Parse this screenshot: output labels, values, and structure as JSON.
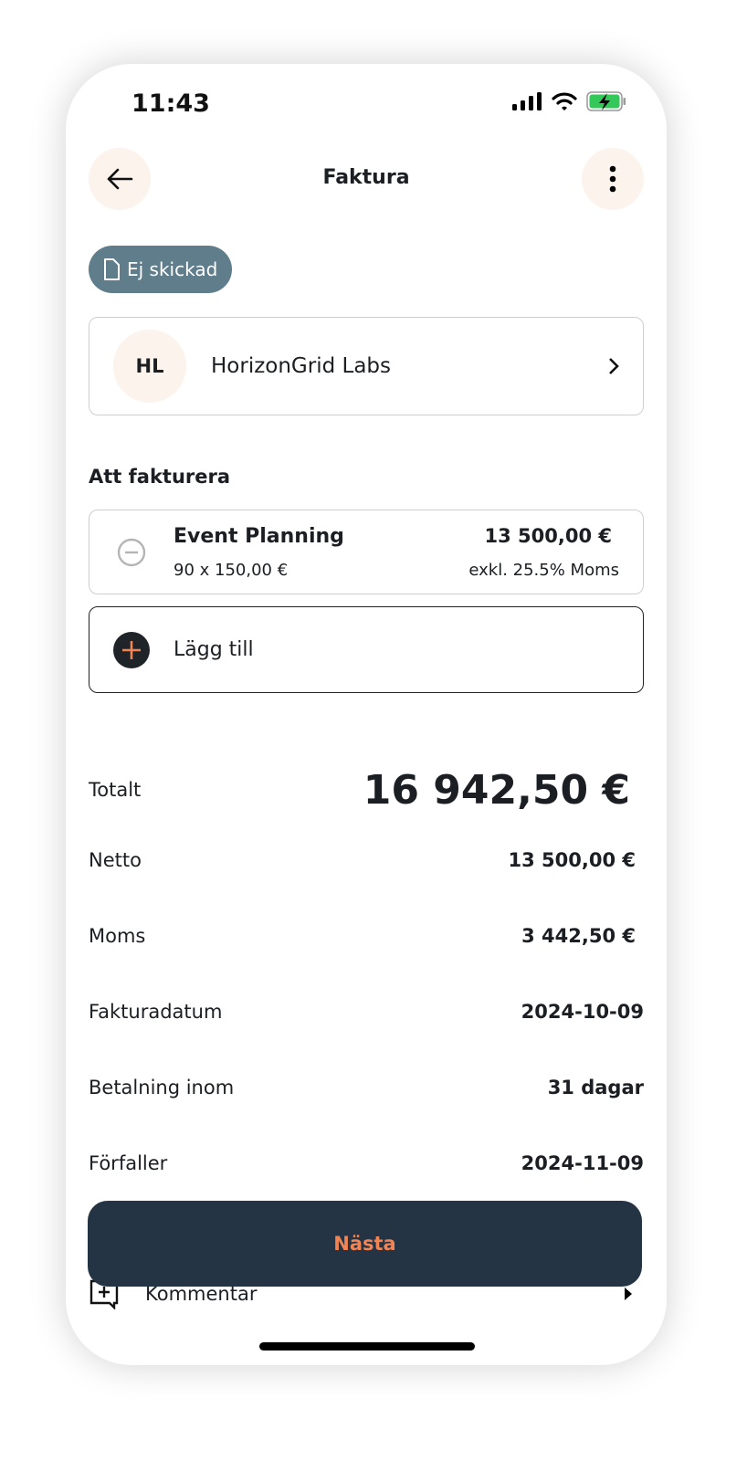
{
  "status_bar": {
    "time": "11:43",
    "icons": [
      "signal-icon",
      "wifi-icon",
      "battery-charging-icon"
    ]
  },
  "header": {
    "title": "Faktura",
    "back_icon": "arrow-left-icon",
    "menu_icon": "more-vertical-icon"
  },
  "status_badge": {
    "label": "Ej skickad",
    "icon": "document-icon",
    "color": "#607d8b"
  },
  "customer": {
    "initials": "HL",
    "name": "HorizonGrid Labs"
  },
  "items_section": {
    "title": "Att fakturera",
    "items": [
      {
        "name": "Event Planning",
        "quantity_price": "90 x 150,00 €",
        "amount": "13 500,00 €",
        "vat_note": "exkl. 25.5% Moms"
      }
    ],
    "add_label": "Lägg till"
  },
  "summary": {
    "total_label": "Totalt",
    "total_value": "16 942,50 €",
    "rows": [
      {
        "label": "Netto",
        "value": "13 500,00 €"
      },
      {
        "label": "Moms",
        "value": "3 442,50 €"
      },
      {
        "label": "Fakturadatum",
        "value": "2024-10-09"
      },
      {
        "label": "Betalning inom",
        "value": "31 dagar"
      },
      {
        "label": "Förfaller",
        "value": "2024-11-09"
      }
    ]
  },
  "comment": {
    "label": "Kommentar"
  },
  "next_button": {
    "label": "Nästa",
    "bg": "#243444",
    "fg": "#f08455"
  }
}
